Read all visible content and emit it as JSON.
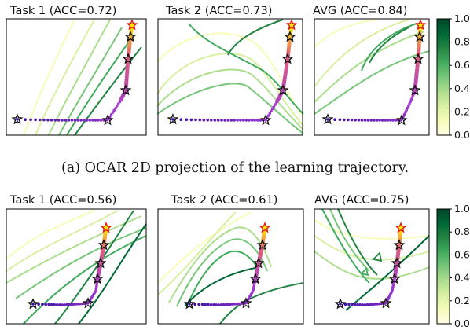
{
  "caption_a": "(a) OCAR 2D projection of the learning trajectory.",
  "colormap": [
    "#ffffe5",
    "#f7fcb9",
    "#d9f0a3",
    "#addd8e",
    "#78c679",
    "#41ab5d",
    "#238443",
    "#006837",
    "#004529"
  ],
  "trajectory_colors": {
    "start": "#3a0ca3",
    "mid": "#a23bd1",
    "late": "#e0607a",
    "end": "#ffe600"
  },
  "star_colors": {
    "normal": "#111111",
    "final": "#e31a1c"
  },
  "chart_data": [
    {
      "type": "contour",
      "title": "Task 1 (ACC=0.72)",
      "row": 1,
      "colorbar_ticks": [
        "0.0",
        "0.2",
        "0.4",
        "0.6",
        "0.8",
        "1.0"
      ],
      "vrange": [
        0.0,
        1.0
      ],
      "trajectory_stars": 5,
      "final_star_color": "red"
    },
    {
      "type": "contour",
      "title": "Task 2 (ACC=0.73)",
      "row": 1,
      "trajectory_stars": 5,
      "final_star_color": "red"
    },
    {
      "type": "contour",
      "title": "AVG (ACC=0.84)",
      "row": 1,
      "colorbar_ticks": [
        "0.0",
        "0.2",
        "0.4",
        "0.6",
        "0.8",
        "1.0"
      ],
      "vrange": [
        0.0,
        1.0
      ],
      "trajectory_stars": 5,
      "final_star_color": "red"
    },
    {
      "type": "contour",
      "title": "Task 1 (ACC=0.56)",
      "row": 2,
      "trajectory_stars": 5,
      "final_star_color": "red"
    },
    {
      "type": "contour",
      "title": "Task 2 (ACC=0.61)",
      "row": 2,
      "trajectory_stars": 5,
      "final_star_color": "red"
    },
    {
      "type": "contour",
      "title": "AVG (ACC=0.75)",
      "row": 2,
      "colorbar_ticks": [
        "0.0",
        "0.2",
        "0.4",
        "0.6",
        "0.8",
        "1.0"
      ],
      "vrange": [
        0.0,
        1.0
      ],
      "trajectory_stars": 5,
      "final_star_color": "red"
    }
  ]
}
